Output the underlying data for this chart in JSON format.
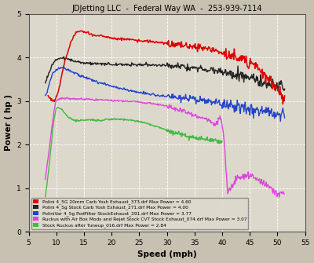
{
  "title": "JDJetting LLC  -  Federal Way WA  -  253-939-7114",
  "xlabel": "Speed (mph)",
  "ylabel": "Power ( hp )",
  "xlim": [
    5,
    55
  ],
  "ylim": [
    0,
    5
  ],
  "background_color": "#c8c0b0",
  "plot_bg_color": "#ddd8cc",
  "grid_color": "#ffffff",
  "legend": [
    {
      "label": "Polini 4_5G 20mm Carb Yosh Exhaust_373.drf Max Power = 4.60",
      "color": "#dd0000"
    },
    {
      "label": "Polini 4_5g Stock Carb Yosh Exhaust_271.drf Max Power = 4.00",
      "color": "#222222"
    },
    {
      "label": "PoliniVar 4_5g PodFilter StockExhaust_291.drf Max Power = 3.77",
      "color": "#2244cc"
    },
    {
      "label": "Ruckus with Air Box Mods and Rejet Stock CVT Stock Exhaust_074.drf Max Power = 3.07",
      "color": "#dd44dd"
    },
    {
      "label": "Stock Ruckus after Tuneup_016.drf Max Power = 2.84",
      "color": "#44bb44"
    }
  ],
  "xticks": [
    5,
    10,
    15,
    20,
    25,
    30,
    35,
    40,
    45,
    50,
    55
  ],
  "yticks": [
    0,
    1,
    2,
    3,
    4,
    5
  ]
}
